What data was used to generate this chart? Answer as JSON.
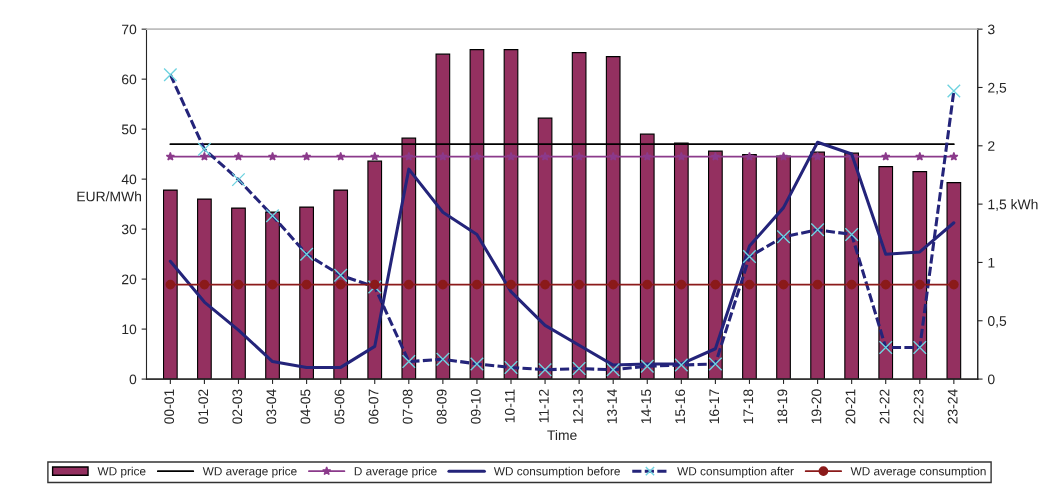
{
  "chart_data": {
    "type": "bar",
    "xlabel": "Time",
    "ylabel": "EUR/MWh",
    "categories": [
      "00-01",
      "01-02",
      "02-03",
      "03-04",
      "04-05",
      "05-06",
      "06-07",
      "07-08",
      "08-09",
      "09-10",
      "10-11",
      "11-12",
      "12-13",
      "13-14",
      "14-15",
      "15-16",
      "16-17",
      "17-18",
      "18-19",
      "19-20",
      "20-21",
      "21-22",
      "22-23",
      "23-24"
    ],
    "series": [
      {
        "name": "WD price",
        "color": "#943060",
        "values": [
          37.8,
          36,
          34.2,
          33.4,
          34.4,
          37.8,
          43.6,
          48.2,
          65,
          65.9,
          65.9,
          52.2,
          65.3,
          64.5,
          49,
          47.2,
          45.6,
          44.9,
          44.6,
          45.4,
          45.2,
          42.5,
          41.5,
          39.3
        ]
      },
      {
        "name": "WD average price",
        "type": "line",
        "color": "#000000",
        "marker": "none",
        "line_style": "solid",
        "values": [
          47,
          47,
          47,
          47,
          47,
          47,
          47,
          47,
          47,
          47,
          47,
          47,
          47,
          47,
          47,
          47,
          47,
          47,
          47,
          47,
          47,
          47,
          47,
          47
        ]
      },
      {
        "name": "D average price",
        "type": "line",
        "color": "#8b3a8b",
        "marker": "star",
        "line_style": "solid",
        "values": [
          44.5,
          44.5,
          44.5,
          44.5,
          44.5,
          44.5,
          44.5,
          44.5,
          44.5,
          44.5,
          44.5,
          44.5,
          44.5,
          44.5,
          44.5,
          44.5,
          44.5,
          44.5,
          44.5,
          44.5,
          44.5,
          44.5,
          44.5,
          44.5
        ]
      },
      {
        "name": "WD consumption before",
        "type": "line",
        "axis": "y2",
        "color": "#24247a",
        "marker": "none",
        "line_style": "solid",
        "values": [
          1.01,
          0.66,
          0.42,
          0.15,
          0.1,
          0.1,
          0.28,
          1.8,
          1.43,
          1.24,
          0.75,
          0.46,
          0.29,
          0.12,
          0.13,
          0.13,
          0.26,
          1.14,
          1.47,
          2.03,
          1.93,
          1.07,
          1.09,
          1.34
        ]
      },
      {
        "name": "WD consumption after",
        "type": "line",
        "axis": "y2",
        "color": "#24247a",
        "marker": "cross",
        "line_style": "dashed",
        "values": [
          2.61,
          1.97,
          1.71,
          1.4,
          1.07,
          0.89,
          0.79,
          0.15,
          0.17,
          0.13,
          0.1,
          0.08,
          0.09,
          0.08,
          0.11,
          0.12,
          0.13,
          1.05,
          1.22,
          1.28,
          1.24,
          0.27,
          0.27,
          2.47
        ]
      },
      {
        "name": "WD average consumption",
        "type": "line",
        "axis": "y2",
        "color": "#8b1a1a",
        "marker": "circle",
        "line_style": "solid",
        "values": [
          0.81,
          0.81,
          0.81,
          0.81,
          0.81,
          0.81,
          0.81,
          0.81,
          0.81,
          0.81,
          0.81,
          0.81,
          0.81,
          0.81,
          0.81,
          0.81,
          0.81,
          0.81,
          0.81,
          0.81,
          0.81,
          0.81,
          0.81,
          0.81
        ]
      }
    ],
    "ylim": [
      0,
      70
    ],
    "yticks": [
      0,
      10,
      20,
      30,
      40,
      50,
      60,
      70
    ],
    "y2lim": [
      0,
      3
    ],
    "y2ticks": [
      0,
      {
        "value": 0.5,
        "label": "0,5"
      },
      1,
      {
        "value": 1.5,
        "label": "1,5 kWh"
      },
      2,
      {
        "value": 2.5,
        "label": "2,5"
      },
      3
    ],
    "grid": false,
    "legend": "bottom"
  }
}
